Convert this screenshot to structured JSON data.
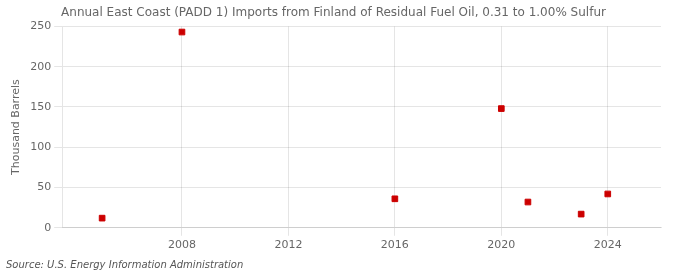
{
  "chart_data": {
    "type": "scatter",
    "title": "Annual East Coast (PADD 1) Imports from Finland of Residual Fuel Oil, 0.31 to 1.00% Sulfur",
    "ylabel": "Thousand Barrels",
    "annotations": [
      "Source: U.S. Energy Information Administration"
    ],
    "x": [
      2005,
      2008,
      2016,
      2020,
      2021,
      2023,
      2024
    ],
    "values": [
      12,
      243,
      36,
      148,
      32,
      17,
      42
    ],
    "color": "#cc0000",
    "marker": "square",
    "xlim": [
      2003.5,
      2026
    ],
    "xticks": [
      2008,
      2012,
      2016,
      2020,
      2024
    ],
    "ylim": [
      0,
      250
    ],
    "yticks": [
      0,
      50,
      100,
      150,
      200,
      250
    ],
    "grid": true
  }
}
